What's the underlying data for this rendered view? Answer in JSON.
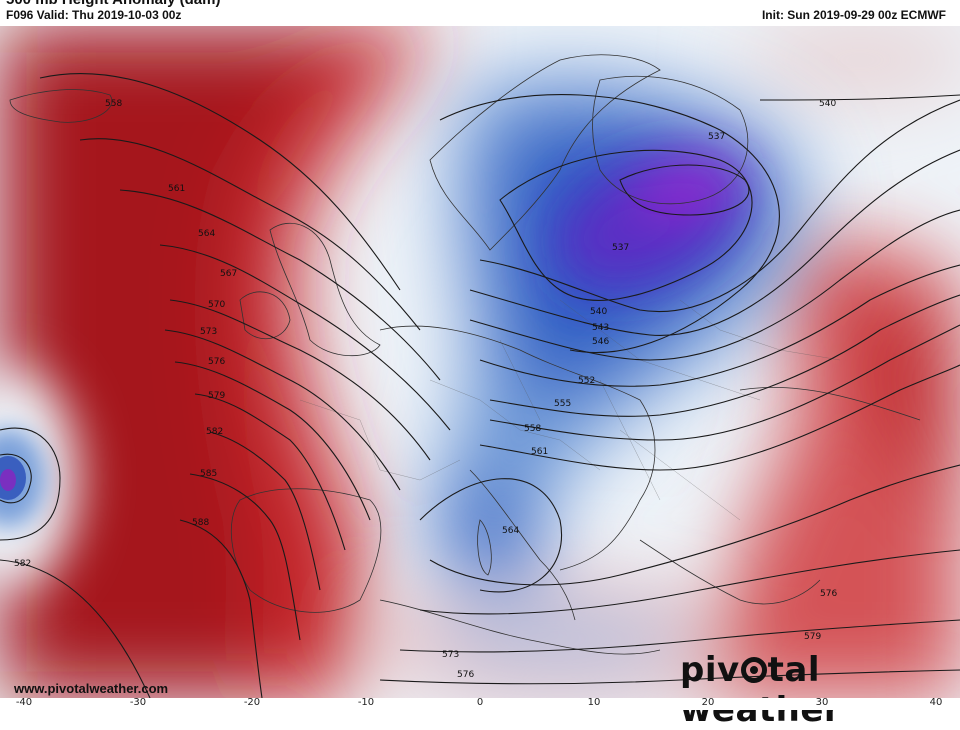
{
  "header": {
    "title": "500 mb Height Anomaly (dam)",
    "valid": "F096 Valid: Thu 2019-10-03 00z",
    "init": "Init: Sun 2019-09-29 00z ECMWF"
  },
  "footer": {
    "website": "www.pivotalweather.com",
    "brand_left": "piv",
    "brand_right": "tal weather"
  },
  "longitude_ticks": [
    "-40",
    "-30",
    "-20",
    "-10",
    "0",
    "10",
    "20",
    "30",
    "40"
  ],
  "contour_labels": [
    "558",
    "561",
    "564",
    "567",
    "570",
    "573",
    "576",
    "579",
    "582",
    "585",
    "588",
    "582",
    "564",
    "540",
    "537",
    "537",
    "540",
    "543",
    "546",
    "552",
    "555",
    "558",
    "561",
    "576",
    "579",
    "573",
    "576"
  ],
  "colors": {
    "positive_anomaly": "#c0181c",
    "negative_anomaly": "#1e4fb0",
    "strong_negative": "#7a22c8",
    "contour": "#1a1a1a"
  }
}
